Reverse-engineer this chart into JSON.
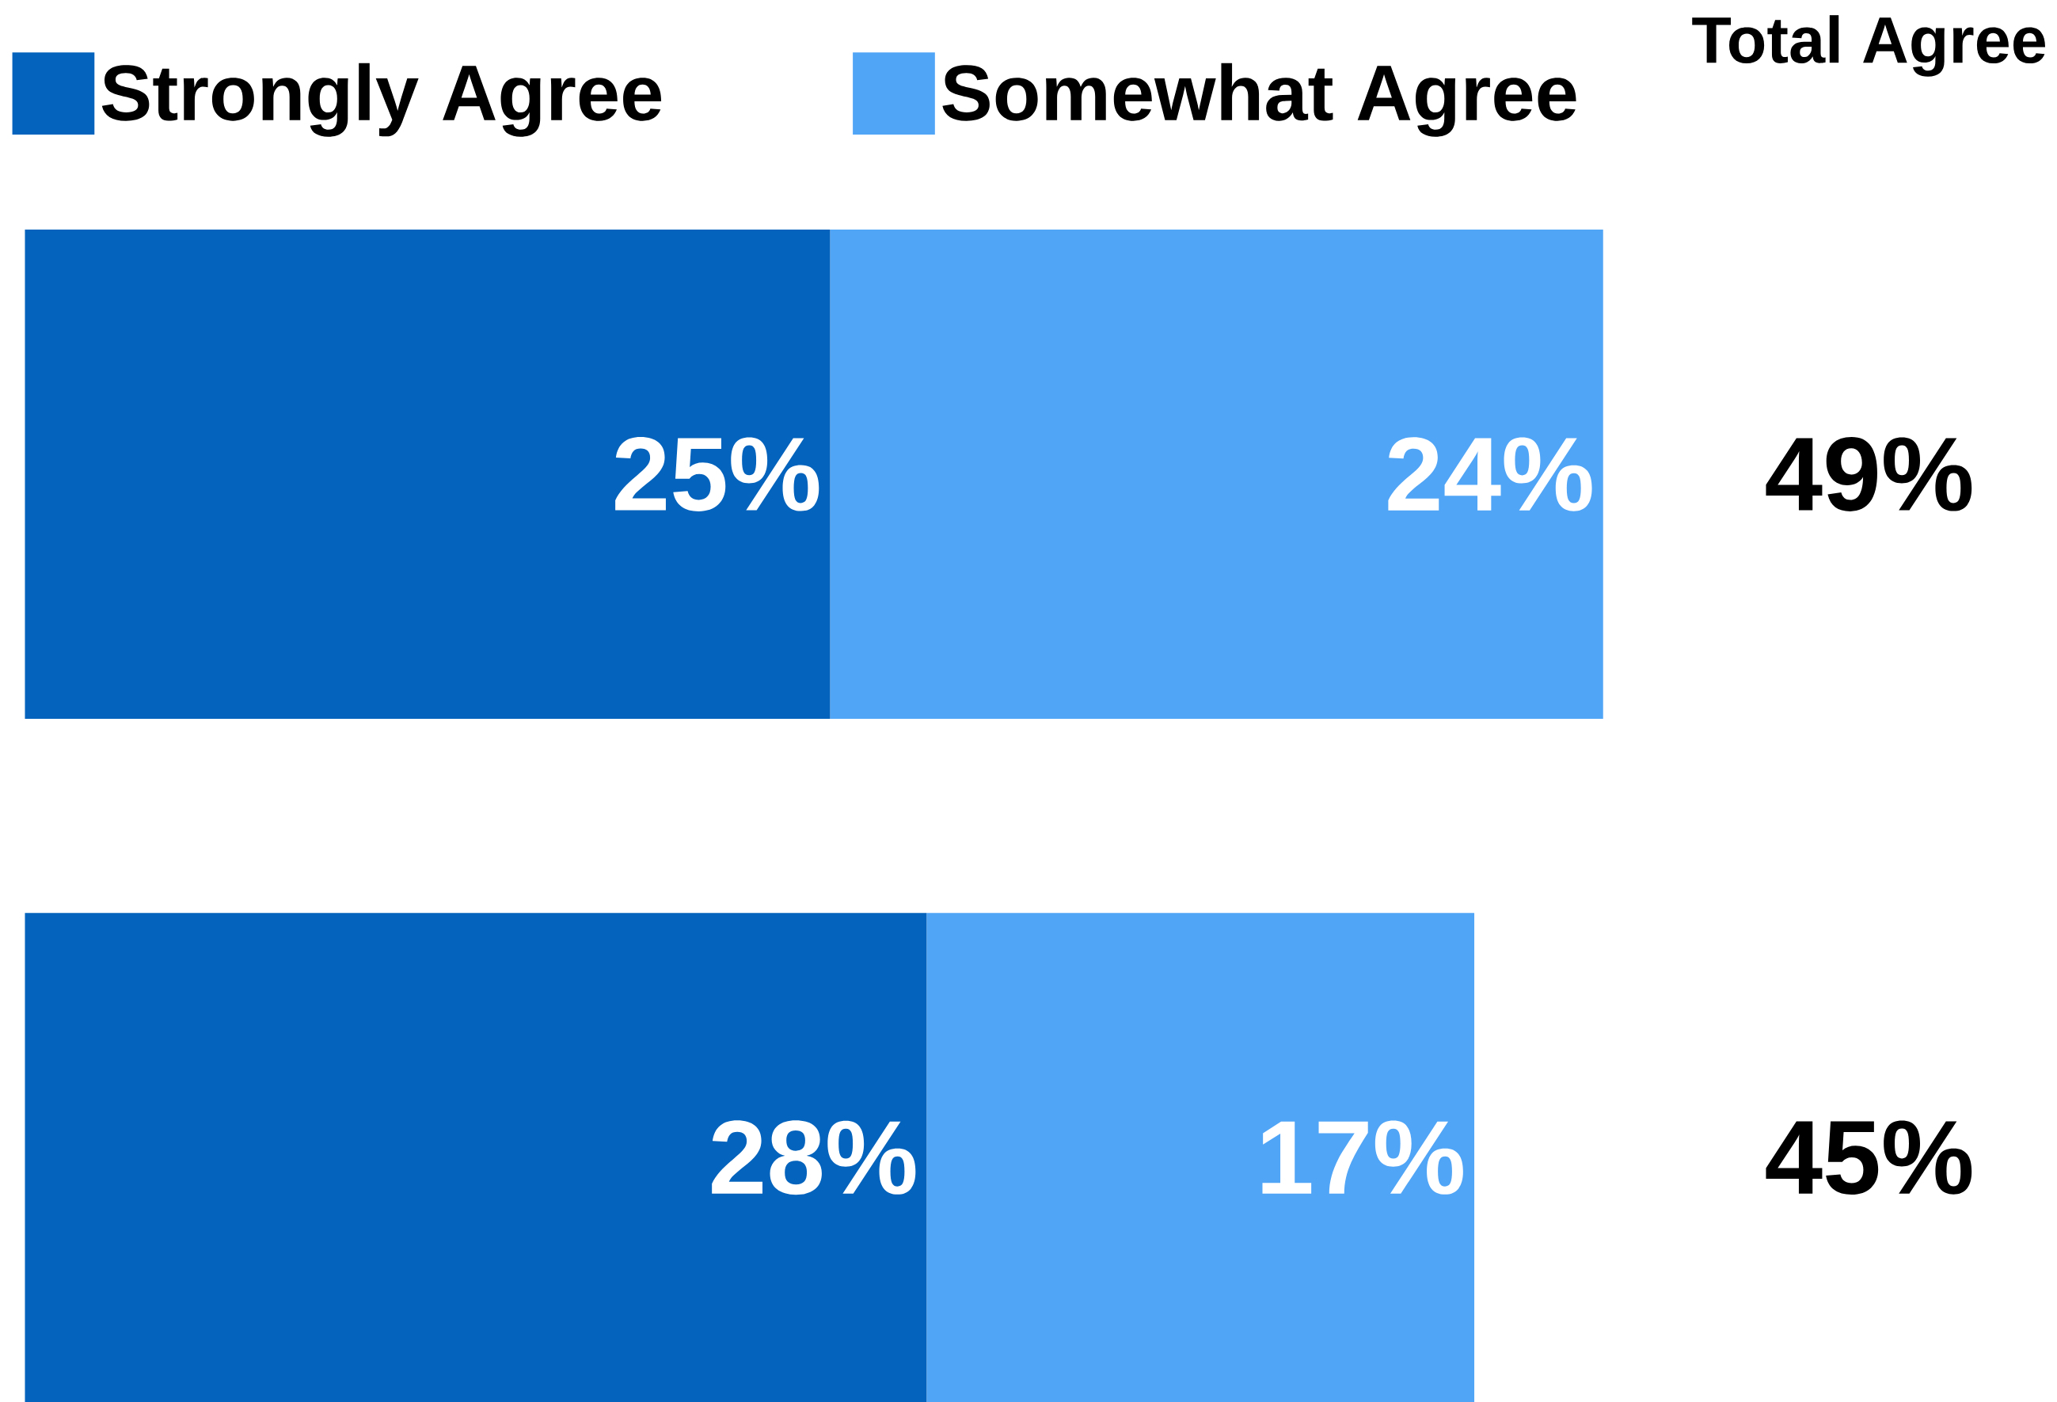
{
  "chart_data": {
    "type": "bar",
    "orientation": "horizontal",
    "stacked": true,
    "categories": [
      null,
      null
    ],
    "series": [
      {
        "name": "Strongly Agree",
        "color": "#0463bd",
        "values": [
          25,
          28
        ],
        "value_labels": [
          "25%",
          "28%"
        ]
      },
      {
        "name": "Somewhat Agree",
        "color": "#51a5f7",
        "values": [
          24,
          17
        ],
        "value_labels": [
          "24%",
          "17%"
        ]
      }
    ],
    "totals": [
      "49%",
      "45%"
    ],
    "annotations": [
      "Total Agree"
    ],
    "legend": "top left"
  }
}
